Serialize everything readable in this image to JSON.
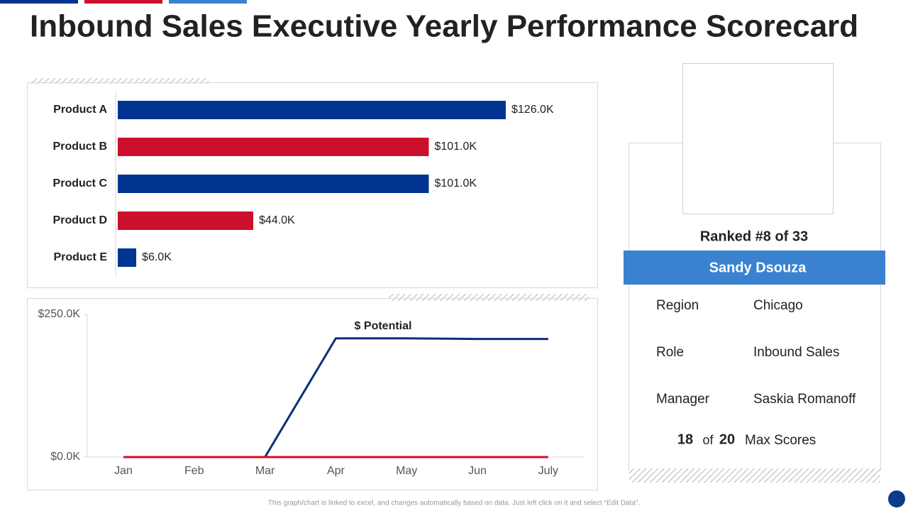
{
  "title": "Inbound Sales Executive Yearly Performance Scorecard",
  "chart_data": [
    {
      "type": "hbar",
      "categories": [
        "Product A",
        "Product B",
        "Product C",
        "Product D",
        "Product E"
      ],
      "values": [
        126000,
        101000,
        101000,
        44000,
        6000
      ],
      "value_labels": [
        "$126.0K",
        "$101.0K",
        "$101.0K",
        "$44.0K",
        "$6.0K"
      ],
      "colors": [
        "#023592",
        "#cc102c",
        "#023592",
        "#cc102c",
        "#023592"
      ]
    },
    {
      "type": "line",
      "categories": [
        "Jan",
        "Feb",
        "Mar",
        "Apr",
        "May",
        "Jun",
        "July"
      ],
      "ylim": [
        0,
        250000
      ],
      "yticks": [
        {
          "value": 0,
          "label": "$0.0K"
        },
        {
          "value": 250000,
          "label": "$250.0K"
        }
      ],
      "series": [
        {
          "name": "$ Potential",
          "color": "#0b2f7a",
          "values": [
            null,
            null,
            0,
            208000,
            208000,
            207000,
            207000
          ]
        },
        {
          "color": "#cc102c",
          "values": [
            0,
            0,
            0,
            0,
            0,
            0,
            0
          ]
        }
      ]
    }
  ],
  "profile": {
    "rank": "Ranked #8 of 33",
    "name": "Sandy Dsouza",
    "rows": [
      [
        "Region",
        "Chicago"
      ],
      [
        "Role",
        "Inbound Sales"
      ],
      [
        "Manager",
        "Saskia Romanoff"
      ]
    ],
    "score": "18",
    "of": "of",
    "max": "20",
    "score_label": "Max Scores"
  },
  "footer": "This graph/chart is linked to excel, and changes automatically based on data. Just left click on it and select “Edit Data”."
}
